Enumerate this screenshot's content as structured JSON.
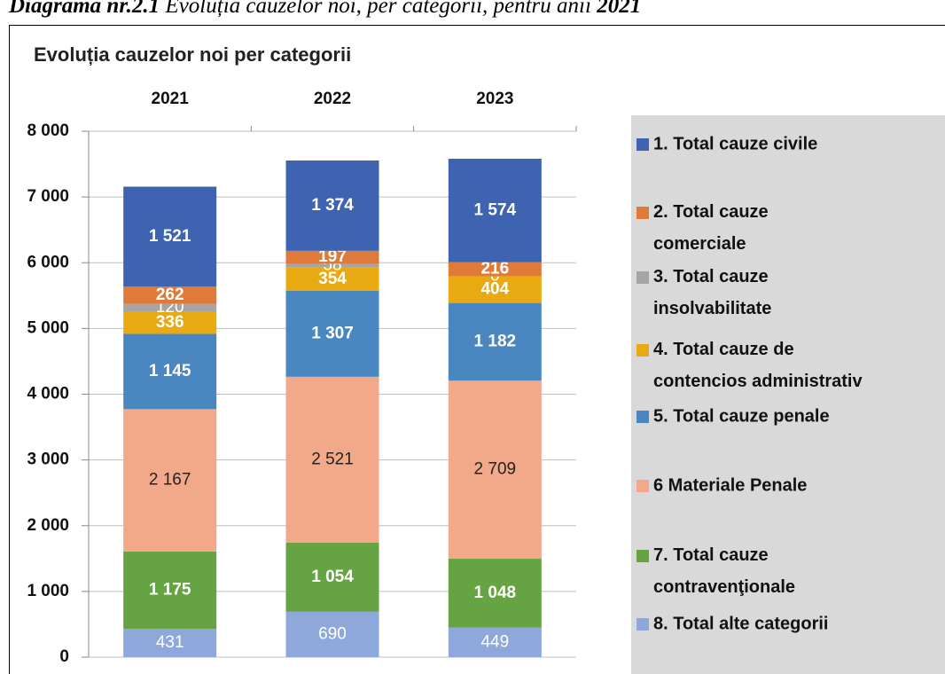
{
  "chart_data": {
    "type": "stacked_bar",
    "caption": {
      "label": "Diagrama nr.2.1",
      "text": " Evoluția cauzelor noi, per categorii, pentru anii ",
      "years": "2021"
    },
    "title": "Evoluția cauzelor noi per categorii",
    "categories": [
      "2021",
      "2022",
      "2023"
    ],
    "ylim": [
      0,
      8000
    ],
    "yticks": [
      {
        "value": 0,
        "label": "0"
      },
      {
        "value": 1000,
        "label": "1 000"
      },
      {
        "value": 2000,
        "label": "2 000"
      },
      {
        "value": 3000,
        "label": "3 000"
      },
      {
        "value": 4000,
        "label": "4 000"
      },
      {
        "value": 5000,
        "label": "5 000"
      },
      {
        "value": 6000,
        "label": "6 000"
      },
      {
        "value": 7000,
        "label": "7 000"
      },
      {
        "value": 8000,
        "label": "8 000"
      }
    ],
    "grid": true,
    "legend": "right",
    "series": [
      {
        "name": "1. Total cauze civile",
        "color": "#3e63b0",
        "label_color": "#ffffff",
        "label_bold": true,
        "values": [
          1521,
          1374,
          1574
        ],
        "value_labels": [
          "1 521",
          "1 374",
          "1 574"
        ]
      },
      {
        "name": "2. Total cauze comerciale",
        "color": "#e07a38",
        "label_color": "#ffffff",
        "label_bold": true,
        "values": [
          262,
          197,
          216
        ]
      },
      {
        "name": "3. Total cauze insolvabilitate",
        "color": "#a5a5a5",
        "label_color": "#ffffff",
        "label_bold": false,
        "values": [
          120,
          58,
          0
        ]
      },
      {
        "name": "4. Total cauze de contencios administrativ",
        "color": "#e8aa10",
        "label_color": "#ffffff",
        "label_bold": true,
        "values": [
          336,
          354,
          404
        ]
      },
      {
        "name": "5. Total cauze penale",
        "color": "#4a86c0",
        "label_color": "#ffffff",
        "label_bold": true,
        "values": [
          1145,
          1307,
          1182
        ],
        "value_labels": [
          "1 145",
          "1 307",
          "1 182"
        ]
      },
      {
        "name": "6 Materiale Penale",
        "color": "#f2a98a",
        "label_color": "#222222",
        "label_bold": false,
        "values": [
          2167,
          2521,
          2709
        ],
        "value_labels": [
          "2 167",
          "2 521",
          "2 709"
        ]
      },
      {
        "name": "7. Total cauze contravenţionale",
        "color": "#66a343",
        "label_color": "#ffffff",
        "label_bold": true,
        "values": [
          1175,
          1054,
          1048
        ],
        "value_labels": [
          "1 175",
          "1 054",
          "1 048"
        ]
      },
      {
        "name": "8. Total alte categorii",
        "color": "#8ea8dc",
        "label_color": "#ffffff",
        "label_bold": false,
        "values": [
          431,
          690,
          449
        ]
      }
    ]
  }
}
